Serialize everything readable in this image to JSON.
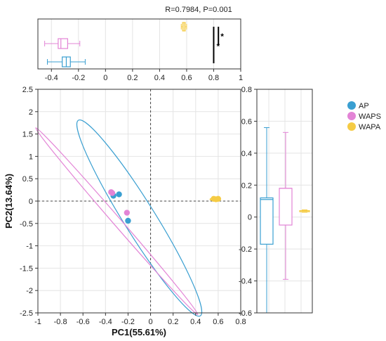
{
  "chart_data": {
    "type": "scatter",
    "annotation": "R=0.7984, P=0.001",
    "xlabel": "PC1(55.61%)",
    "ylabel": "PC2(13.64%)",
    "xlim": [
      -1,
      0.8
    ],
    "ylim": [
      -2.5,
      2.5
    ],
    "x_ticks": [
      "-1",
      "-0.8",
      "-0.6",
      "-0.4",
      "-0.2",
      "0",
      "0.2",
      "0.4",
      "0.6",
      "0.8"
    ],
    "y_ticks": [
      "2.5",
      "2",
      "1.5",
      "1",
      "0.5",
      "0",
      "-0.5",
      "-1",
      "-1.5",
      "-2",
      "-2.5"
    ],
    "top_axis": {
      "xlim": [
        -0.5,
        1
      ],
      "ticks": [
        "-0.4",
        "-0.2",
        "0",
        "0.2",
        "0.4",
        "0.6",
        "0.8",
        "1"
      ],
      "significance": [
        "*",
        "*"
      ]
    },
    "right_axis": {
      "ylim": [
        -0.6,
        0.8
      ],
      "ticks": [
        "0.8",
        "0.6",
        "0.4",
        "0.2",
        "0",
        "-0.2",
        "-0.4",
        "-0.6"
      ]
    },
    "legend_position": "right",
    "series": [
      {
        "name": "AP",
        "color": "#3a9fd1",
        "points": [
          [
            -0.28,
            0.15
          ],
          [
            -0.33,
            0.12
          ],
          [
            -0.2,
            -0.44
          ]
        ],
        "ellipse": {
          "cx": -0.1,
          "cy": -0.38,
          "rx": 2.05,
          "ry": 0.28,
          "angle_deg": 58
        },
        "box_pc1": {
          "min": -0.43,
          "q1": -0.32,
          "median": -0.29,
          "q3": -0.26,
          "max": -0.15
        },
        "box_pc2": {
          "min": -0.6,
          "q1": -0.17,
          "median": 0.11,
          "q3": 0.12,
          "max": 0.56
        }
      },
      {
        "name": "WAPS",
        "color": "#e384d6",
        "points": [
          [
            -0.35,
            0.2
          ],
          [
            -0.34,
            0.18
          ],
          [
            -0.21,
            -0.26
          ]
        ],
        "ellipse": {
          "cx": -0.3,
          "cy": -0.45,
          "rx": 2.2,
          "ry": 0.07,
          "angle_deg": 49
        },
        "box_pc1": {
          "min": -0.45,
          "q1": -0.35,
          "median": -0.33,
          "q3": -0.28,
          "max": -0.19
        },
        "box_pc2": {
          "min": -0.39,
          "q1": -0.05,
          "median": 0.18,
          "q3": 0.18,
          "max": 0.53
        }
      },
      {
        "name": "WAPA",
        "color": "#f5cb44",
        "points": [
          [
            0.56,
            0.05
          ],
          [
            0.58,
            0.04
          ],
          [
            0.6,
            0.05
          ]
        ],
        "ellipse": {
          "cx": 0.57,
          "cy": 0.04,
          "rx": 0.085,
          "ry": 0.022,
          "angle_deg": 0
        },
        "box_pc1": {
          "min": 0.56,
          "q1": 0.57,
          "median": 0.58,
          "q3": 0.59,
          "max": 0.6
        },
        "box_pc2": {
          "min": 0.03,
          "q1": 0.035,
          "median": 0.04,
          "q3": 0.04,
          "max": 0.045
        }
      }
    ]
  }
}
